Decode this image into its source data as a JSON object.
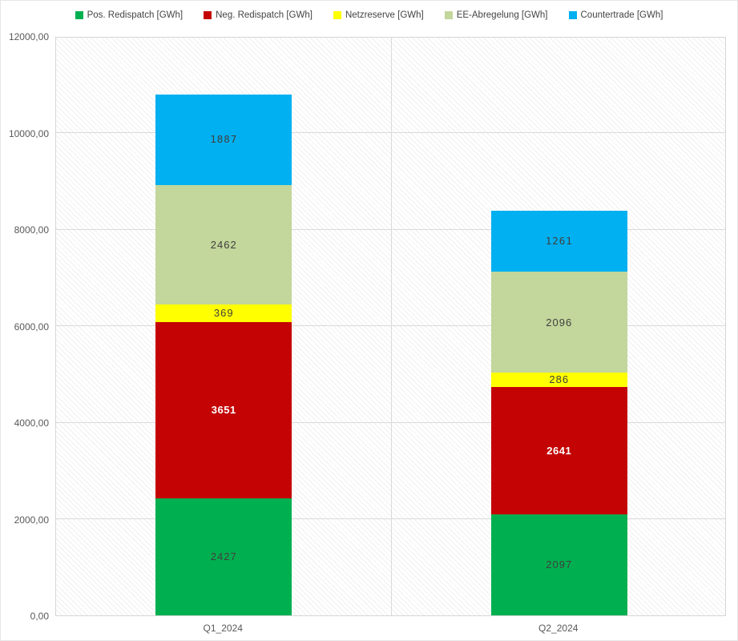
{
  "chart_data": {
    "type": "bar",
    "stacked": true,
    "title": "",
    "xlabel": "",
    "ylabel": "",
    "categories": [
      "Q1_2024",
      "Q2_2024"
    ],
    "series": [
      {
        "name": "Pos. Redispatch [GWh]",
        "color": "#00B050",
        "label_color": "#3f3f3f",
        "values": [
          2427,
          2097
        ]
      },
      {
        "name": "Neg. Redispatch [GWh]",
        "color": "#C40404",
        "label_color": "#ffffff",
        "values": [
          3651,
          2641
        ]
      },
      {
        "name": "Netzreserve [GWh]",
        "color": "#FFFF00",
        "label_color": "#3f3f3f",
        "values": [
          369,
          286
        ]
      },
      {
        "name": "EE-Abregelung [GWh]",
        "color": "#C3D69B",
        "label_color": "#3f3f3f",
        "values": [
          2462,
          2096
        ]
      },
      {
        "name": "Countertrade [GWh]",
        "color": "#00B0F0",
        "label_color": "#3f3f3f",
        "values": [
          1887,
          1261
        ]
      }
    ],
    "category_totals": [
      10796,
      8381
    ],
    "ylim": [
      0,
      12000
    ],
    "ytick_step": 2000,
    "ytick_labels": [
      "0,00",
      "2000,00",
      "4000,00",
      "6000,00",
      "8000,00",
      "10000,00",
      "12000,00"
    ],
    "grid": true,
    "gridline_color": "#dadada",
    "legend_position": "top"
  }
}
